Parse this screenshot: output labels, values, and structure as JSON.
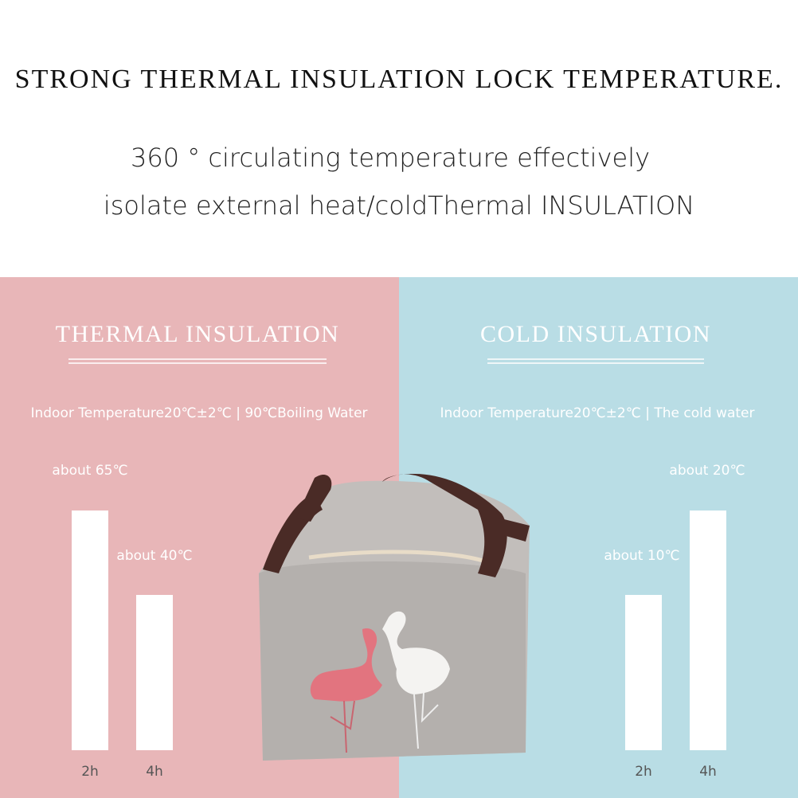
{
  "header": {
    "title": "STRONG THERMAL INSULATION LOCK TEMPERATURE.",
    "subtitle_lines": [
      "360 ° circulating temperature effectively",
      "isolate external heat/coldThermal INSULATION"
    ]
  },
  "panels": [
    {
      "heading": "THERMAL INSULATION",
      "condition": "Indoor Temperature20℃±2℃ | 90℃Boiling Water",
      "bars": [
        {
          "label": "about 65℃",
          "time": "2h"
        },
        {
          "label": "about 40℃",
          "time": "4h"
        }
      ]
    },
    {
      "heading": "COLD INSULATION",
      "condition": "Indoor Temperature20℃±2℃ | The cold water",
      "bars": [
        {
          "label": "about 10℃",
          "time": "2h"
        },
        {
          "label": "about 20℃",
          "time": "4h"
        }
      ]
    }
  ]
}
